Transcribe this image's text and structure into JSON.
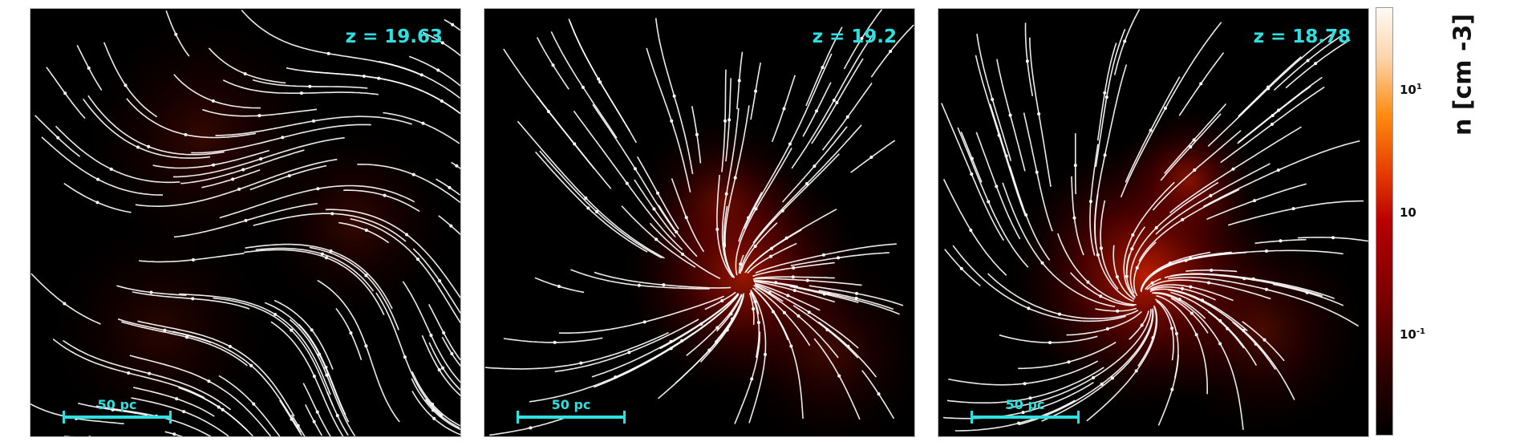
{
  "panels": [
    {
      "redshift": "z = 19.63",
      "scale_bar": "50 pc"
    },
    {
      "redshift": "z = 19.2",
      "scale_bar": "50 pc"
    },
    {
      "redshift": "z = 18.78",
      "scale_bar": "50 pc"
    }
  ],
  "colorbar": {
    "label": "n [cm -3]",
    "ticks": [
      {
        "base": "10",
        "exp": "1"
      },
      {
        "base": "10",
        "exp": ""
      },
      {
        "base": "10",
        "exp": "-1"
      }
    ],
    "colormap": [
      "#000000",
      "#7a0000",
      "#b80000",
      "#e84000",
      "#ff8c10",
      "#fbd3a8",
      "#fffaf4"
    ]
  },
  "colors": {
    "annotation": "#2fe0e0",
    "streamline": "#ffffff"
  }
}
